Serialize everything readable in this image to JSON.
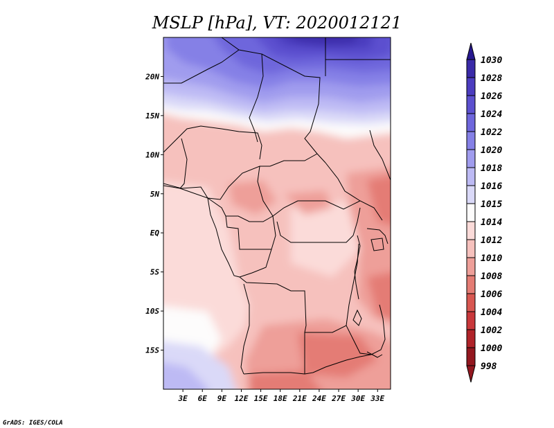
{
  "title": "MSLP [hPa], VT: 2020012121",
  "credit": "GrADS: IGES/COLA",
  "map": {
    "variable": "MSLP",
    "units": "hPa",
    "valid_time": "2020012121",
    "lat_range": [
      -20,
      25
    ],
    "lon_range": [
      0,
      35
    ],
    "lat_ticks": [
      {
        "label": "20N",
        "value": 20
      },
      {
        "label": "15N",
        "value": 15
      },
      {
        "label": "10N",
        "value": 10
      },
      {
        "label": "5N",
        "value": 5
      },
      {
        "label": "EQ",
        "value": 0
      },
      {
        "label": "5S",
        "value": -5
      },
      {
        "label": "10S",
        "value": -10
      },
      {
        "label": "15S",
        "value": -15
      }
    ],
    "lon_ticks": [
      {
        "label": "3E",
        "value": 3
      },
      {
        "label": "6E",
        "value": 6
      },
      {
        "label": "9E",
        "value": 9
      },
      {
        "label": "12E",
        "value": 12
      },
      {
        "label": "15E",
        "value": 15
      },
      {
        "label": "18E",
        "value": 18
      },
      {
        "label": "21E",
        "value": 21
      },
      {
        "label": "24E",
        "value": 24
      },
      {
        "label": "27E",
        "value": 27
      },
      {
        "label": "30E",
        "value": 30
      },
      {
        "label": "33E",
        "value": 33
      }
    ]
  },
  "legend": {
    "levels": [
      {
        "label": "1030",
        "color": "#27188f"
      },
      {
        "label": "1028",
        "color": "#3a2aa8"
      },
      {
        "label": "1026",
        "color": "#4b3cbf"
      },
      {
        "label": "1024",
        "color": "#5c50cf"
      },
      {
        "label": "1022",
        "color": "#6e66dc"
      },
      {
        "label": "1020",
        "color": "#8580e6"
      },
      {
        "label": "1018",
        "color": "#a09cee"
      },
      {
        "label": "1016",
        "color": "#bdbaf4"
      },
      {
        "label": "1015",
        "color": "#dad9f8"
      },
      {
        "label": "1014",
        "color": "#fdfcfc"
      },
      {
        "label": "1012",
        "color": "#fbdbd9"
      },
      {
        "label": "1010",
        "color": "#f6c1bd"
      },
      {
        "label": "1008",
        "color": "#ee9f99"
      },
      {
        "label": "1006",
        "color": "#e47c74"
      },
      {
        "label": "1004",
        "color": "#d85751"
      },
      {
        "label": "1002",
        "color": "#c9383b"
      },
      {
        "label": "1000",
        "color": "#b02329"
      },
      {
        "label": "998",
        "color": "#93171f"
      }
    ]
  }
}
